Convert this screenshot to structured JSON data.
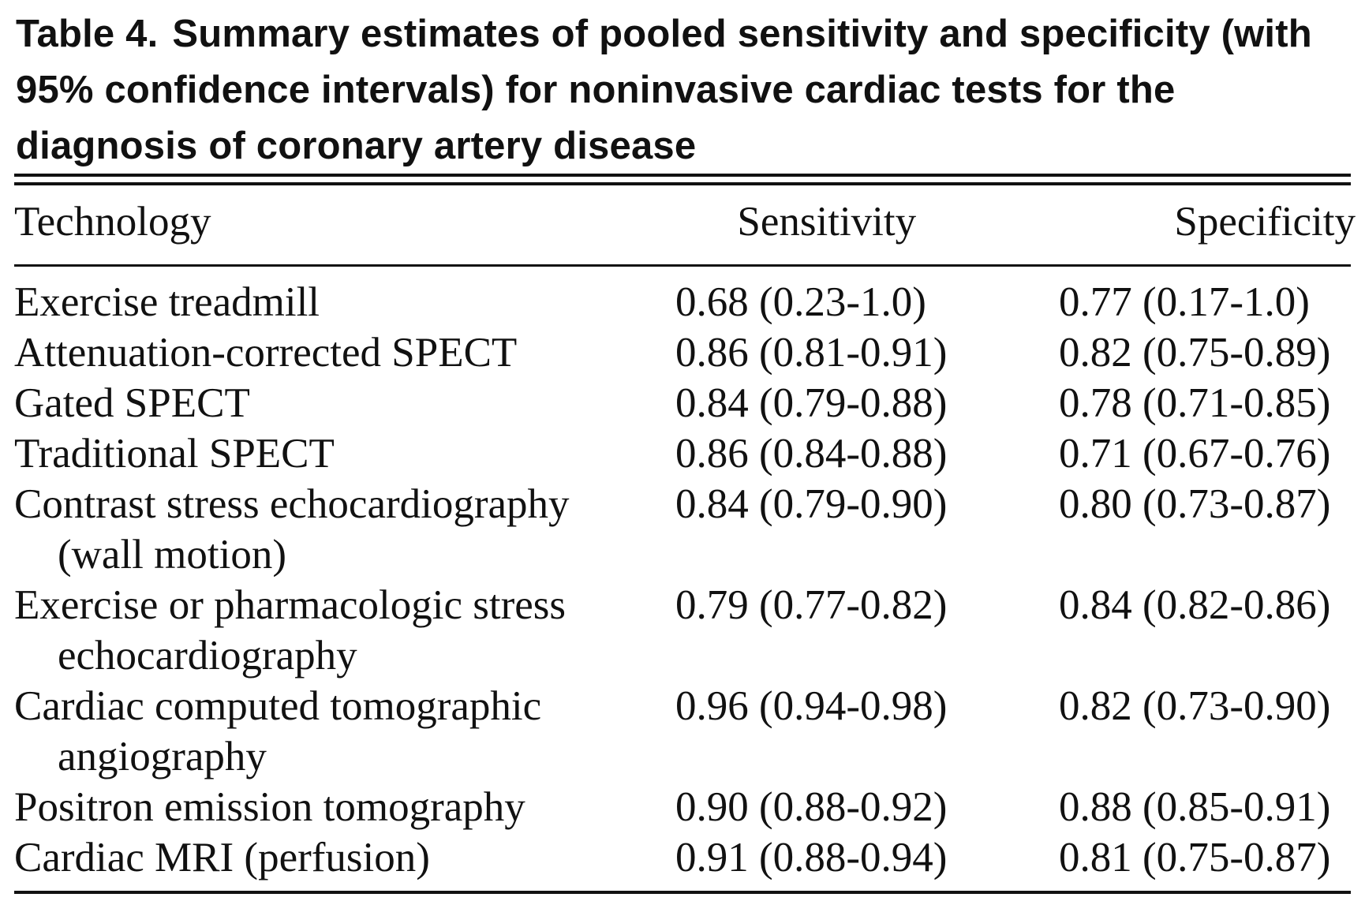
{
  "caption": {
    "label": "Table 4.",
    "text": "Summary estimates of pooled sensitivity and specificity (with 95% confidence intervals) for noninvasive cardiac tests for the diagnosis of coronary artery disease"
  },
  "table": {
    "headers": [
      "Technology",
      "Sensitivity",
      "Specificity"
    ],
    "rows": [
      {
        "technology": "Exercise treadmill",
        "technology_cont": "",
        "sensitivity": "0.68 (0.23-1.0)",
        "specificity": "0.77 (0.17-1.0)"
      },
      {
        "technology": "Attenuation-corrected SPECT",
        "technology_cont": "",
        "sensitivity": "0.86 (0.81-0.91)",
        "specificity": "0.82 (0.75-0.89)"
      },
      {
        "technology": "Gated SPECT",
        "technology_cont": "",
        "sensitivity": "0.84 (0.79-0.88)",
        "specificity": "0.78 (0.71-0.85)"
      },
      {
        "technology": "Traditional SPECT",
        "technology_cont": "",
        "sensitivity": "0.86 (0.84-0.88)",
        "specificity": "0.71 (0.67-0.76)"
      },
      {
        "technology": "Contrast stress echocardiography",
        "technology_cont": "(wall motion)",
        "sensitivity": "0.84 (0.79-0.90)",
        "specificity": "0.80 (0.73-0.87)"
      },
      {
        "technology": "Exercise or pharmacologic stress",
        "technology_cont": "echocardiography",
        "sensitivity": "0.79 (0.77-0.82)",
        "specificity": "0.84 (0.82-0.86)"
      },
      {
        "technology": "Cardiac computed tomographic",
        "technology_cont": "angiography",
        "sensitivity": "0.96 (0.94-0.98)",
        "specificity": "0.82 (0.73-0.90)"
      },
      {
        "technology": "Positron emission tomography",
        "technology_cont": "",
        "sensitivity": "0.90 (0.88-0.92)",
        "specificity": "0.88 (0.85-0.91)"
      },
      {
        "technology": "Cardiac MRI (perfusion)",
        "technology_cont": "",
        "sensitivity": "0.91 (0.88-0.94)",
        "specificity": "0.81 (0.75-0.87)"
      }
    ]
  }
}
